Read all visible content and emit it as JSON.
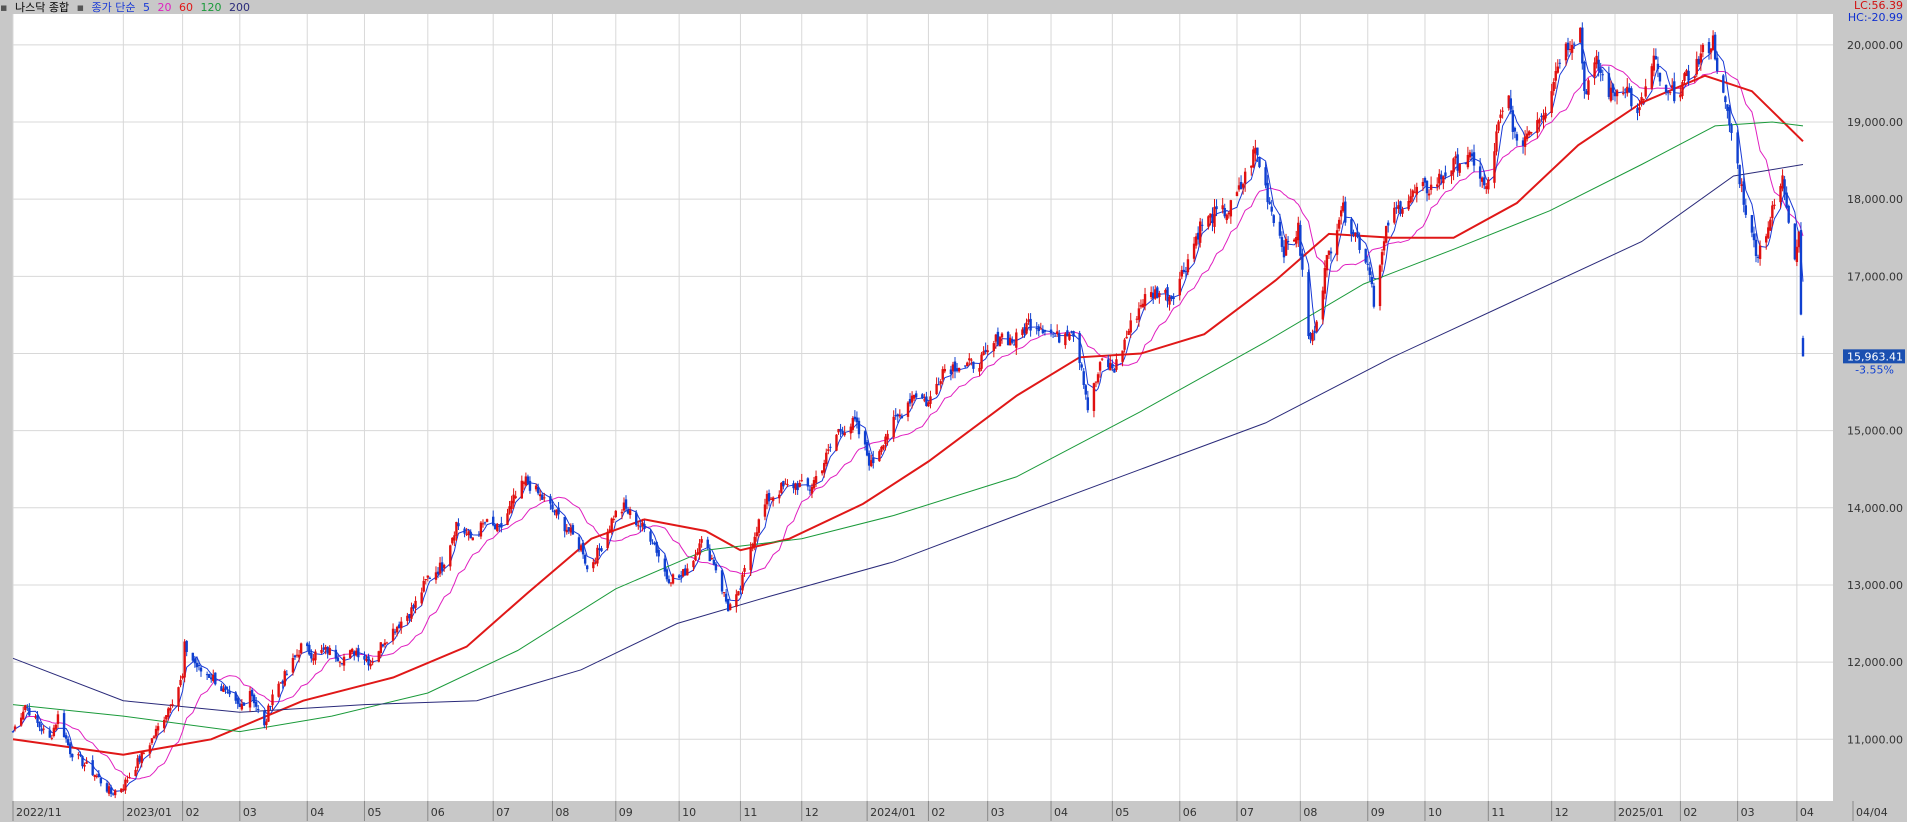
{
  "legend": {
    "title": "나스닥 종합",
    "mode": "종가 단순",
    "ma": [
      {
        "period": "5",
        "color": "#1a3ad6"
      },
      {
        "period": "20",
        "color": "#e020c0"
      },
      {
        "period": "60",
        "color": "#e01818"
      },
      {
        "period": "120",
        "color": "#1a9a3a"
      },
      {
        "period": "200",
        "color": "#2a2a7a"
      }
    ]
  },
  "corner": {
    "lc": "LC:56.39",
    "hc": "HC:-20.99"
  },
  "price_label": "15,963.41",
  "change_label": "-3.55%",
  "chart_data": {
    "type": "candlestick",
    "title": "나스닥 종합",
    "ylim": [
      10200,
      20400
    ],
    "y_ticks": [
      11000,
      12000,
      13000,
      14000,
      15000,
      16000,
      17000,
      18000,
      19000,
      20000
    ],
    "y_tick_labels": [
      "11,000.00",
      "12,000.00",
      "13,000.00",
      "14,000.00",
      "15,000.00",
      "16,000.00",
      "17,000.00",
      "18,000.00",
      "19,000.00",
      "20,000.00"
    ],
    "x_range": [
      "2022-11-10",
      "2025-04-04"
    ],
    "x_ticks": [
      {
        "date": "2022-11-10",
        "label": "2022/11"
      },
      {
        "date": "2023-01-03",
        "label": "2023/01"
      },
      {
        "date": "2023-02-01",
        "label": "02"
      },
      {
        "date": "2023-03-01",
        "label": "03"
      },
      {
        "date": "2023-04-03",
        "label": "04"
      },
      {
        "date": "2023-05-01",
        "label": "05"
      },
      {
        "date": "2023-06-01",
        "label": "06"
      },
      {
        "date": "2023-07-03",
        "label": "07"
      },
      {
        "date": "2023-08-01",
        "label": "08"
      },
      {
        "date": "2023-09-01",
        "label": "09"
      },
      {
        "date": "2023-10-02",
        "label": "10"
      },
      {
        "date": "2023-11-01",
        "label": "11"
      },
      {
        "date": "2023-12-01",
        "label": "12"
      },
      {
        "date": "2024-01-02",
        "label": "2024/01"
      },
      {
        "date": "2024-02-01",
        "label": "02"
      },
      {
        "date": "2024-03-01",
        "label": "03"
      },
      {
        "date": "2024-04-01",
        "label": "04"
      },
      {
        "date": "2024-05-01",
        "label": "05"
      },
      {
        "date": "2024-06-03",
        "label": "06"
      },
      {
        "date": "2024-07-01",
        "label": "07"
      },
      {
        "date": "2024-08-01",
        "label": "08"
      },
      {
        "date": "2024-09-03",
        "label": "09"
      },
      {
        "date": "2024-10-01",
        "label": "10"
      },
      {
        "date": "2024-11-01",
        "label": "11"
      },
      {
        "date": "2024-12-02",
        "label": "12"
      },
      {
        "date": "2025-01-02",
        "label": "2025/01"
      },
      {
        "date": "2025-02-03",
        "label": "02"
      },
      {
        "date": "2025-03-03",
        "label": "03"
      },
      {
        "date": "2025-04-01",
        "label": "04"
      },
      {
        "date": "2025-04-04",
        "label": "04/04"
      }
    ],
    "close_anchors": [
      [
        "2022-11-10",
        11100
      ],
      [
        "2022-11-16",
        11450
      ],
      [
        "2022-11-22",
        11200
      ],
      [
        "2022-11-28",
        11000
      ],
      [
        "2022-12-02",
        11300
      ],
      [
        "2022-12-08",
        10850
      ],
      [
        "2022-12-14",
        10700
      ],
      [
        "2022-12-20",
        10550
      ],
      [
        "2022-12-28",
        10300
      ],
      [
        "2023-01-03",
        10400
      ],
      [
        "2023-01-10",
        10700
      ],
      [
        "2023-01-17",
        11000
      ],
      [
        "2023-01-24",
        11350
      ],
      [
        "2023-02-01",
        11800
      ],
      [
        "2023-02-02",
        12200
      ],
      [
        "2023-02-09",
        11900
      ],
      [
        "2023-02-16",
        11800
      ],
      [
        "2023-02-23",
        11550
      ],
      [
        "2023-03-01",
        11400
      ],
      [
        "2023-03-06",
        11650
      ],
      [
        "2023-03-13",
        11150
      ],
      [
        "2023-03-17",
        11600
      ],
      [
        "2023-03-24",
        11850
      ],
      [
        "2023-03-31",
        12200
      ],
      [
        "2023-04-06",
        12100
      ],
      [
        "2023-04-13",
        12150
      ],
      [
        "2023-04-20",
        12050
      ],
      [
        "2023-04-27",
        12150
      ],
      [
        "2023-05-04",
        12000
      ],
      [
        "2023-05-11",
        12300
      ],
      [
        "2023-05-18",
        12500
      ],
      [
        "2023-05-25",
        12700
      ],
      [
        "2023-06-01",
        13100
      ],
      [
        "2023-06-08",
        13250
      ],
      [
        "2023-06-15",
        13800
      ],
      [
        "2023-06-22",
        13600
      ],
      [
        "2023-06-29",
        13800
      ],
      [
        "2023-07-06",
        13700
      ],
      [
        "2023-07-13",
        14100
      ],
      [
        "2023-07-19",
        14350
      ],
      [
        "2023-07-26",
        14150
      ],
      [
        "2023-08-02",
        13950
      ],
      [
        "2023-08-09",
        13700
      ],
      [
        "2023-08-16",
        13450
      ],
      [
        "2023-08-18",
        13200
      ],
      [
        "2023-08-24",
        13450
      ],
      [
        "2023-08-31",
        13900
      ],
      [
        "2023-09-05",
        14000
      ],
      [
        "2023-09-12",
        13800
      ],
      [
        "2023-09-19",
        13600
      ],
      [
        "2023-09-26",
        13100
      ],
      [
        "2023-10-03",
        13100
      ],
      [
        "2023-10-10",
        13400
      ],
      [
        "2023-10-12",
        13600
      ],
      [
        "2023-10-19",
        13300
      ],
      [
        "2023-10-26",
        12700
      ],
      [
        "2023-10-31",
        12850
      ],
      [
        "2023-11-07",
        13600
      ],
      [
        "2023-11-14",
        14100
      ],
      [
        "2023-11-21",
        14250
      ],
      [
        "2023-11-28",
        14300
      ],
      [
        "2023-12-05",
        14250
      ],
      [
        "2023-12-12",
        14600
      ],
      [
        "2023-12-19",
        15000
      ],
      [
        "2023-12-27",
        15100
      ],
      [
        "2024-01-04",
        14550
      ],
      [
        "2024-01-11",
        14950
      ],
      [
        "2024-01-18",
        15200
      ],
      [
        "2024-01-25",
        15500
      ],
      [
        "2024-02-01",
        15350
      ],
      [
        "2024-02-08",
        15800
      ],
      [
        "2024-02-15",
        15850
      ],
      [
        "2024-02-22",
        15850
      ],
      [
        "2024-02-29",
        15950
      ],
      [
        "2024-03-07",
        16250
      ],
      [
        "2024-03-14",
        16150
      ],
      [
        "2024-03-21",
        16400
      ],
      [
        "2024-03-28",
        16350
      ],
      [
        "2024-04-04",
        16200
      ],
      [
        "2024-04-11",
        16350
      ],
      [
        "2024-04-16",
        15850
      ],
      [
        "2024-04-19",
        15300
      ],
      [
        "2024-04-26",
        15900
      ],
      [
        "2024-05-02",
        15800
      ],
      [
        "2024-05-09",
        16300
      ],
      [
        "2024-05-16",
        16700
      ],
      [
        "2024-05-23",
        16800
      ],
      [
        "2024-05-30",
        16750
      ],
      [
        "2024-06-06",
        17150
      ],
      [
        "2024-06-13",
        17650
      ],
      [
        "2024-06-20",
        17800
      ],
      [
        "2024-06-27",
        17850
      ],
      [
        "2024-07-03",
        18150
      ],
      [
        "2024-07-10",
        18650
      ],
      [
        "2024-07-17",
        17950
      ],
      [
        "2024-07-24",
        17350
      ],
      [
        "2024-07-31",
        17600
      ],
      [
        "2024-08-05",
        16200
      ],
      [
        "2024-08-07",
        16200
      ],
      [
        "2024-08-14",
        17200
      ],
      [
        "2024-08-21",
        17900
      ],
      [
        "2024-08-28",
        17550
      ],
      [
        "2024-09-04",
        17100
      ],
      [
        "2024-09-06",
        16700
      ],
      [
        "2024-09-13",
        17700
      ],
      [
        "2024-09-20",
        17950
      ],
      [
        "2024-09-27",
        18100
      ],
      [
        "2024-10-04",
        18150
      ],
      [
        "2024-10-11",
        18350
      ],
      [
        "2024-10-18",
        18500
      ],
      [
        "2024-10-25",
        18500
      ],
      [
        "2024-10-31",
        18100
      ],
      [
        "2024-11-06",
        18950
      ],
      [
        "2024-11-11",
        19300
      ],
      [
        "2024-11-15",
        18650
      ],
      [
        "2024-11-22",
        18950
      ],
      [
        "2024-11-29",
        19200
      ],
      [
        "2024-12-06",
        19850
      ],
      [
        "2024-12-11",
        20050
      ],
      [
        "2024-12-16",
        20200
      ],
      [
        "2024-12-18",
        19400
      ],
      [
        "2024-12-24",
        19750
      ],
      [
        "2024-12-31",
        19350
      ],
      [
        "2025-01-07",
        19500
      ],
      [
        "2025-01-13",
        19050
      ],
      [
        "2025-01-21",
        19800
      ],
      [
        "2025-01-27",
        19300
      ],
      [
        "2025-02-03",
        19450
      ],
      [
        "2025-02-10",
        19700
      ],
      [
        "2025-02-14",
        19900
      ],
      [
        "2025-02-19",
        20050
      ],
      [
        "2025-02-24",
        19300
      ],
      [
        "2025-02-28",
        18850
      ],
      [
        "2025-03-06",
        18000
      ],
      [
        "2025-03-10",
        17500
      ],
      [
        "2025-03-13",
        17300
      ],
      [
        "2025-03-19",
        17750
      ],
      [
        "2025-03-25",
        18250
      ],
      [
        "2025-03-31",
        17300
      ],
      [
        "2025-04-02",
        17600
      ],
      [
        "2025-04-03",
        16550
      ],
      [
        "2025-04-04",
        15963
      ]
    ],
    "moving_averages": [
      {
        "period": "60",
        "color": "#e01818",
        "points": [
          [
            "2022-11-10",
            11000
          ],
          [
            "2023-01-03",
            10800
          ],
          [
            "2023-02-15",
            11000
          ],
          [
            "2023-04-01",
            11500
          ],
          [
            "2023-05-15",
            11800
          ],
          [
            "2023-06-20",
            12200
          ],
          [
            "2023-07-20",
            12900
          ],
          [
            "2023-08-20",
            13600
          ],
          [
            "2023-09-15",
            13850
          ],
          [
            "2023-10-15",
            13700
          ],
          [
            "2023-11-01",
            13450
          ],
          [
            "2023-11-25",
            13600
          ],
          [
            "2023-12-31",
            14050
          ],
          [
            "2024-02-01",
            14600
          ],
          [
            "2024-03-15",
            15450
          ],
          [
            "2024-04-15",
            15950
          ],
          [
            "2024-05-15",
            16000
          ],
          [
            "2024-06-15",
            16250
          ],
          [
            "2024-07-20",
            16950
          ],
          [
            "2024-08-15",
            17550
          ],
          [
            "2024-09-15",
            17500
          ],
          [
            "2024-10-15",
            17500
          ],
          [
            "2024-11-15",
            17950
          ],
          [
            "2024-12-15",
            18700
          ],
          [
            "2025-01-15",
            19250
          ],
          [
            "2025-02-15",
            19600
          ],
          [
            "2025-03-10",
            19400
          ],
          [
            "2025-04-04",
            18750
          ]
        ]
      },
      {
        "period": "120",
        "color": "#1a9a3a",
        "points": [
          [
            "2022-11-10",
            11450
          ],
          [
            "2023-01-03",
            11300
          ],
          [
            "2023-03-01",
            11100
          ],
          [
            "2023-04-15",
            11300
          ],
          [
            "2023-06-01",
            11600
          ],
          [
            "2023-07-15",
            12150
          ],
          [
            "2023-09-01",
            12950
          ],
          [
            "2023-10-15",
            13450
          ],
          [
            "2023-12-01",
            13600
          ],
          [
            "2024-01-15",
            13900
          ],
          [
            "2024-03-15",
            14400
          ],
          [
            "2024-05-15",
            15250
          ],
          [
            "2024-07-15",
            16150
          ],
          [
            "2024-09-01",
            16900
          ],
          [
            "2024-10-15",
            17350
          ],
          [
            "2024-12-01",
            17850
          ],
          [
            "2025-01-15",
            18450
          ],
          [
            "2025-02-20",
            18950
          ],
          [
            "2025-03-20",
            19000
          ],
          [
            "2025-04-04",
            18950
          ]
        ]
      },
      {
        "period": "200",
        "color": "#2a2a7a",
        "points": [
          [
            "2022-11-10",
            12050
          ],
          [
            "2023-01-03",
            11500
          ],
          [
            "2023-03-01",
            11350
          ],
          [
            "2023-05-01",
            11450
          ],
          [
            "2023-06-25",
            11500
          ],
          [
            "2023-08-15",
            11900
          ],
          [
            "2023-10-01",
            12500
          ],
          [
            "2023-11-15",
            12850
          ],
          [
            "2024-01-15",
            13300
          ],
          [
            "2024-03-15",
            13900
          ],
          [
            "2024-05-15",
            14500
          ],
          [
            "2024-07-15",
            15100
          ],
          [
            "2024-09-15",
            15950
          ],
          [
            "2024-11-15",
            16700
          ],
          [
            "2025-01-15",
            17450
          ],
          [
            "2025-03-01",
            18300
          ],
          [
            "2025-04-04",
            18450
          ]
        ]
      }
    ]
  }
}
